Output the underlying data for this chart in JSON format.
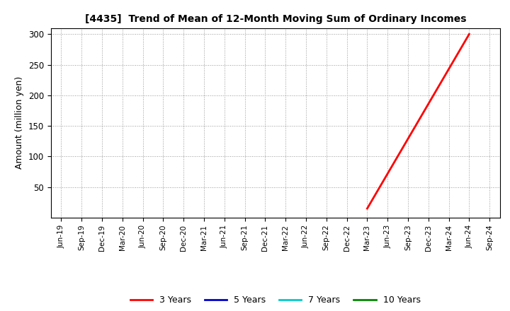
{
  "title": "[4435]  Trend of Mean of 12-Month Moving Sum of Ordinary Incomes",
  "ylabel": "Amount (million yen)",
  "ylim": [
    0,
    310
  ],
  "yticks": [
    50,
    100,
    150,
    200,
    250,
    300
  ],
  "background_color": "#ffffff",
  "grid_color": "#999999",
  "series": {
    "3 Years": {
      "color": "#ff0000",
      "x": [
        "Mar-23",
        "Jun-24"
      ],
      "y": [
        15,
        300
      ]
    },
    "5 Years": {
      "color": "#0000cc",
      "x": [],
      "y": []
    },
    "7 Years": {
      "color": "#00cccc",
      "x": [],
      "y": []
    },
    "10 Years": {
      "color": "#008800",
      "x": [],
      "y": []
    }
  },
  "xtick_labels": [
    "Jun-19",
    "Sep-19",
    "Dec-19",
    "Mar-20",
    "Jun-20",
    "Sep-20",
    "Dec-20",
    "Mar-21",
    "Jun-21",
    "Sep-21",
    "Dec-21",
    "Mar-22",
    "Jun-22",
    "Sep-22",
    "Dec-22",
    "Mar-23",
    "Jun-23",
    "Sep-23",
    "Dec-23",
    "Mar-24",
    "Jun-24",
    "Sep-24"
  ],
  "legend_entries": [
    {
      "label": "3 Years",
      "color": "#ff0000"
    },
    {
      "label": "5 Years",
      "color": "#0000cc"
    },
    {
      "label": "7 Years",
      "color": "#00cccc"
    },
    {
      "label": "10 Years",
      "color": "#008800"
    }
  ]
}
